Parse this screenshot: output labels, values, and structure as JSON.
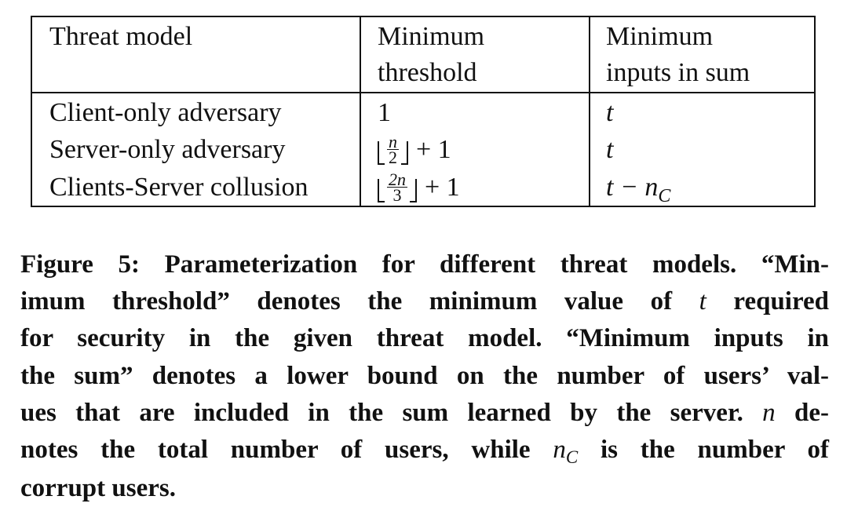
{
  "table": {
    "headers": {
      "col1": "Threat model",
      "col2_line1": "Minimum",
      "col2_line2": "threshold",
      "col3_line1": "Minimum",
      "col3_line2": "inputs in sum"
    },
    "rows": [
      {
        "threat_model": "Client-only adversary",
        "min_threshold": "1",
        "min_inputs": "t"
      },
      {
        "threat_model": "Server-only adversary",
        "min_threshold_numerator": "n",
        "min_threshold_denominator": "2",
        "min_threshold_suffix": "+ 1",
        "min_inputs": "t"
      },
      {
        "threat_model": "Clients-Server collusion",
        "min_threshold_numerator": "2n",
        "min_threshold_denominator": "3",
        "min_threshold_suffix": "+ 1",
        "min_inputs_main": "t − n",
        "min_inputs_sub": "C"
      }
    ]
  },
  "caption": {
    "line1": "Figure 5: Parameterization for different threat models. “Min-",
    "line2_a": "imum threshold” denotes the minimum value of",
    "line2_var": "t",
    "line2_b": "required",
    "line3": "for security in the given threat model. “Minimum inputs in",
    "line4": "the sum” denotes a lower bound on the number of users’ val-",
    "line5": "ues that are included in the sum learned by the server.",
    "line5_var": "n",
    "line5_b": "de-",
    "line6_a": "notes the total number of users, while",
    "line6_var": "n",
    "line6_sub": "C",
    "line6_b": "is the number of",
    "line7": "corrupt users."
  }
}
